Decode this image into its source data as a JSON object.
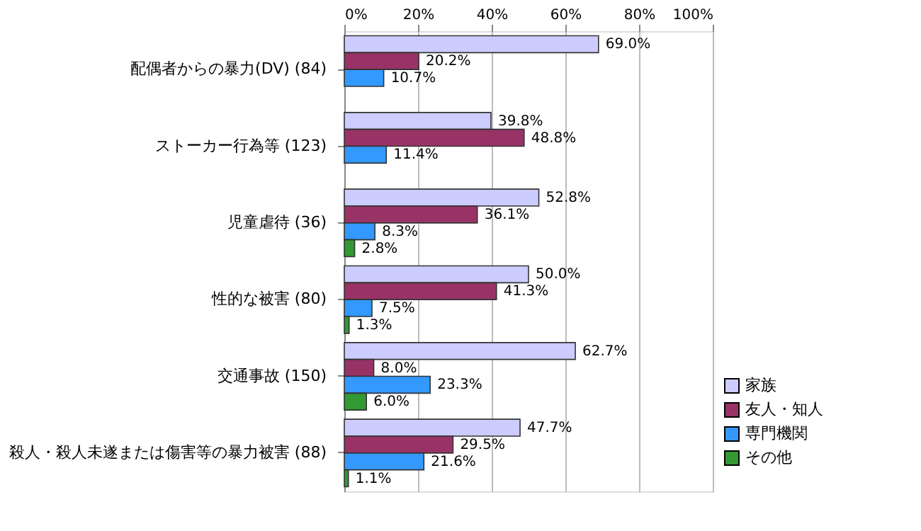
{
  "chart_data": {
    "type": "bar",
    "orientation": "horizontal",
    "categories": [
      "配偶者からの暴力(DV) (84)",
      "ストーカー行為等 (123)",
      "児童虐待 (36)",
      "性的な被害 (80)",
      "交通事故 (150)",
      "殺人・殺人未遂または傷害等の暴力被害 (88)"
    ],
    "series": [
      {
        "name": "家族",
        "color": "#ccccff",
        "values": [
          69.0,
          39.8,
          52.8,
          50.0,
          62.7,
          47.7
        ],
        "value_labels": [
          "69.0%",
          "39.8%",
          "52.8%",
          "50.0%",
          "62.7%",
          "47.7%"
        ]
      },
      {
        "name": "友人・知人",
        "color": "#993366",
        "values": [
          20.2,
          48.8,
          36.1,
          41.3,
          8.0,
          29.5
        ],
        "value_labels": [
          "20.2%",
          "48.8%",
          "36.1%",
          "41.3%",
          "8.0%",
          "29.5%"
        ]
      },
      {
        "name": "専門機関",
        "color": "#3399ff",
        "values": [
          10.7,
          11.4,
          8.3,
          7.5,
          23.3,
          21.6
        ],
        "value_labels": [
          "10.7%",
          "11.4%",
          "8.3%",
          "7.5%",
          "23.3%",
          "21.6%"
        ]
      },
      {
        "name": "その他",
        "color": "#339933",
        "values": [
          null,
          null,
          2.8,
          1.3,
          6.0,
          1.1
        ],
        "value_labels": [
          null,
          null,
          "2.8%",
          "1.3%",
          "6.0%",
          "1.1%"
        ]
      }
    ],
    "xlim": [
      0,
      100
    ],
    "xticks": [
      {
        "value": 0,
        "label": "0%"
      },
      {
        "value": 20,
        "label": "20%"
      },
      {
        "value": 40,
        "label": "40%"
      },
      {
        "value": 60,
        "label": "60%"
      },
      {
        "value": 80,
        "label": "80%"
      },
      {
        "value": 100,
        "label": "100%"
      }
    ],
    "grid": "x",
    "legend": "bottom right"
  }
}
